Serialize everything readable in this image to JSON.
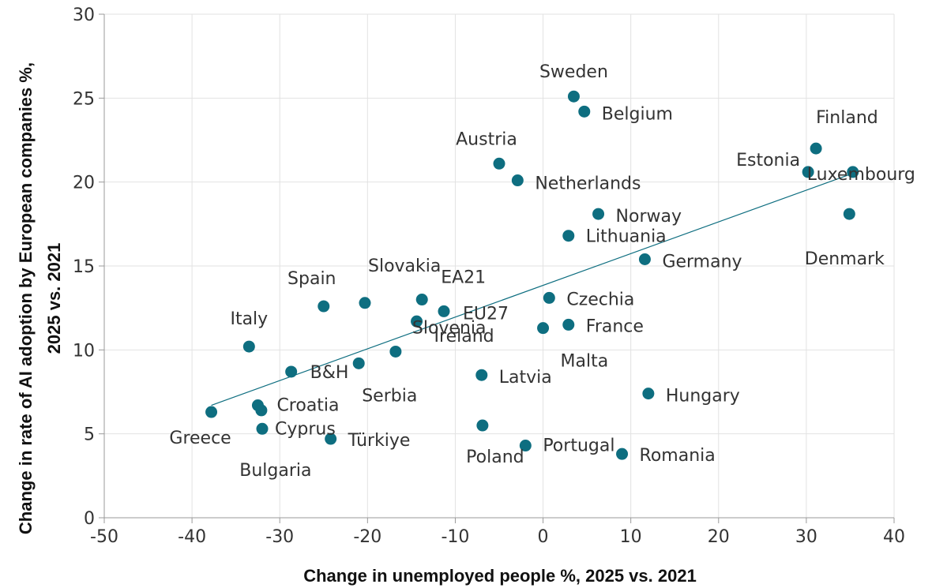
{
  "chart_data": {
    "type": "scatter",
    "xlabel": "Change in unemployed people %,  2025 vs. 2021",
    "ylabel_lines": [
      "Change in rate of AI adoption by European companies %,",
      "2025 vs. 2021"
    ],
    "xlim": [
      -50,
      40
    ],
    "ylim": [
      0,
      30
    ],
    "xticks": [
      -50,
      -40,
      -30,
      -20,
      -10,
      0,
      10,
      20,
      30,
      40
    ],
    "yticks": [
      0,
      5,
      10,
      15,
      20,
      25,
      30
    ],
    "grid": true,
    "marker_color": "#0e6e80",
    "trendline": {
      "x": [
        -37.8,
        35.2
      ],
      "y": [
        6.7,
        20.5
      ],
      "color": "#0e6e80"
    },
    "points": [
      {
        "label": "Sweden",
        "x": 3.5,
        "y": 25.1
      },
      {
        "label": "Belgium",
        "x": 4.7,
        "y": 24.2
      },
      {
        "label": "Finland",
        "x": 31.1,
        "y": 22.0
      },
      {
        "label": "Estonia",
        "x": 30.2,
        "y": 20.6
      },
      {
        "label": "Luxembourg",
        "x": 35.3,
        "y": 20.6
      },
      {
        "label": "Denmark",
        "x": 34.9,
        "y": 18.1
      },
      {
        "label": "Austria",
        "x": -5.0,
        "y": 21.1
      },
      {
        "label": "Netherlands",
        "x": -2.9,
        "y": 20.1
      },
      {
        "label": "Norway",
        "x": 6.3,
        "y": 18.1
      },
      {
        "label": "Lithuania",
        "x": 2.9,
        "y": 16.8
      },
      {
        "label": "Germany",
        "x": 11.6,
        "y": 15.4
      },
      {
        "label": "Spain",
        "x": -25.0,
        "y": 12.6
      },
      {
        "label": "Slovakia",
        "x": -20.3,
        "y": 12.8
      },
      {
        "label": "EA21",
        "x": -13.8,
        "y": 13.0
      },
      {
        "label": "EU27",
        "x": -11.3,
        "y": 12.3
      },
      {
        "label": "Ireland",
        "x": -14.4,
        "y": 11.7
      },
      {
        "label": "Czechia",
        "x": 0.7,
        "y": 13.1
      },
      {
        "label": "France",
        "x": 2.9,
        "y": 11.5
      },
      {
        "label": "Malta",
        "x": 0.0,
        "y": 11.3
      },
      {
        "label": "Italy",
        "x": -33.5,
        "y": 10.2
      },
      {
        "label": "B&H",
        "x": -28.7,
        "y": 8.7
      },
      {
        "label": "Serbia",
        "x": -21.0,
        "y": 9.2
      },
      {
        "label": "Slovenia",
        "x": -16.8,
        "y": 9.9
      },
      {
        "label": "Latvia",
        "x": -7.0,
        "y": 8.5
      },
      {
        "label": "Hungary",
        "x": 12.0,
        "y": 7.4
      },
      {
        "label": "Croatia",
        "x": -32.5,
        "y": 6.7
      },
      {
        "label": "Greece",
        "x": -37.8,
        "y": 6.3
      },
      {
        "label": "Cyprus",
        "x": -32.0,
        "y": 5.3
      },
      {
        "label": "Bulgaria",
        "x": -32.1,
        "y": 6.4
      },
      {
        "label": "Türkiye",
        "x": -24.2,
        "y": 4.7
      },
      {
        "label": "Poland",
        "x": -6.9,
        "y": 5.5
      },
      {
        "label": "Portugal",
        "x": -2.0,
        "y": 4.3
      },
      {
        "label": "Romania",
        "x": 9.0,
        "y": 3.8
      }
    ]
  }
}
